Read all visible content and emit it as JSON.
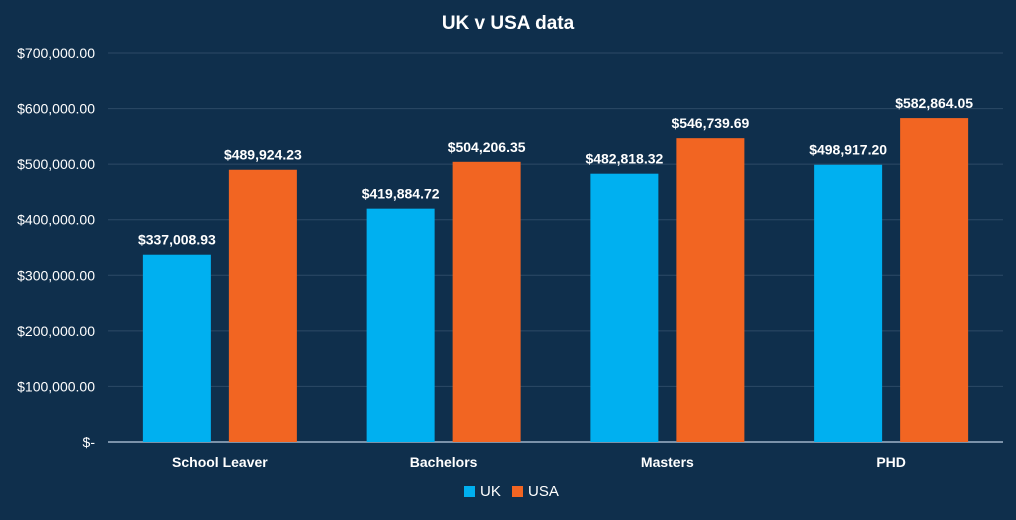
{
  "chart_data": {
    "type": "bar",
    "title": "UK v USA data",
    "categories": [
      "School Leaver",
      "Bachelors",
      "Masters",
      "PHD"
    ],
    "series": [
      {
        "name": "UK",
        "color": "#00b0f0",
        "values": [
          337008.93,
          419884.72,
          482818.32,
          498917.2
        ],
        "labels": [
          "$337,008.93",
          "$419,884.72",
          "$482,818.32",
          "$498,917.20"
        ]
      },
      {
        "name": "USA",
        "color": "#f26522",
        "values": [
          489924.23,
          504206.35,
          546739.69,
          582864.05
        ],
        "labels": [
          "$489,924.23",
          "$504,206.35",
          "$546,739.69",
          "$582,864.05"
        ]
      }
    ],
    "y_ticks": [
      0,
      100000,
      200000,
      300000,
      400000,
      500000,
      600000,
      700000
    ],
    "y_tick_labels": [
      "$-",
      "$100,000.00",
      "$200,000.00",
      "$300,000.00",
      "$400,000.00",
      "$500,000.00",
      "$600,000.00",
      "$700,000.00"
    ],
    "ylim": [
      0,
      700000
    ],
    "grid": true,
    "legend": "bottom",
    "colors": {
      "background": "#0f2f4c",
      "gridline": "#2d4a66",
      "axis": "#9fb3c8",
      "text": "#ffffff"
    }
  }
}
